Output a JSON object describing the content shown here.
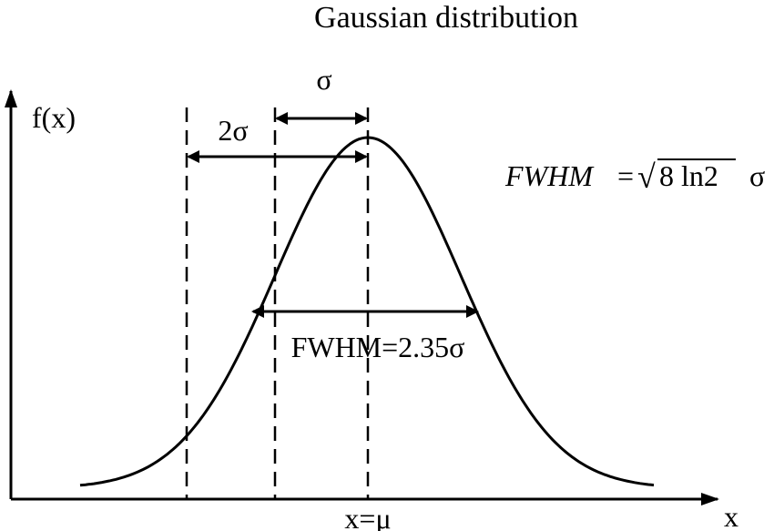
{
  "diagram": {
    "title": "Gaussian distribution",
    "y_axis_label": "f(x)",
    "x_axis_label": "x",
    "mean_label": "x=μ",
    "sigma_label": "σ",
    "two_sigma_label": "2σ",
    "fwhm_label": "FWHM=2.35σ",
    "formula": {
      "lhs": "FWHM",
      "equals": "=",
      "sqrt_symbol": "√",
      "radicand": "8 ln2",
      "sigma": "σ"
    }
  }
}
